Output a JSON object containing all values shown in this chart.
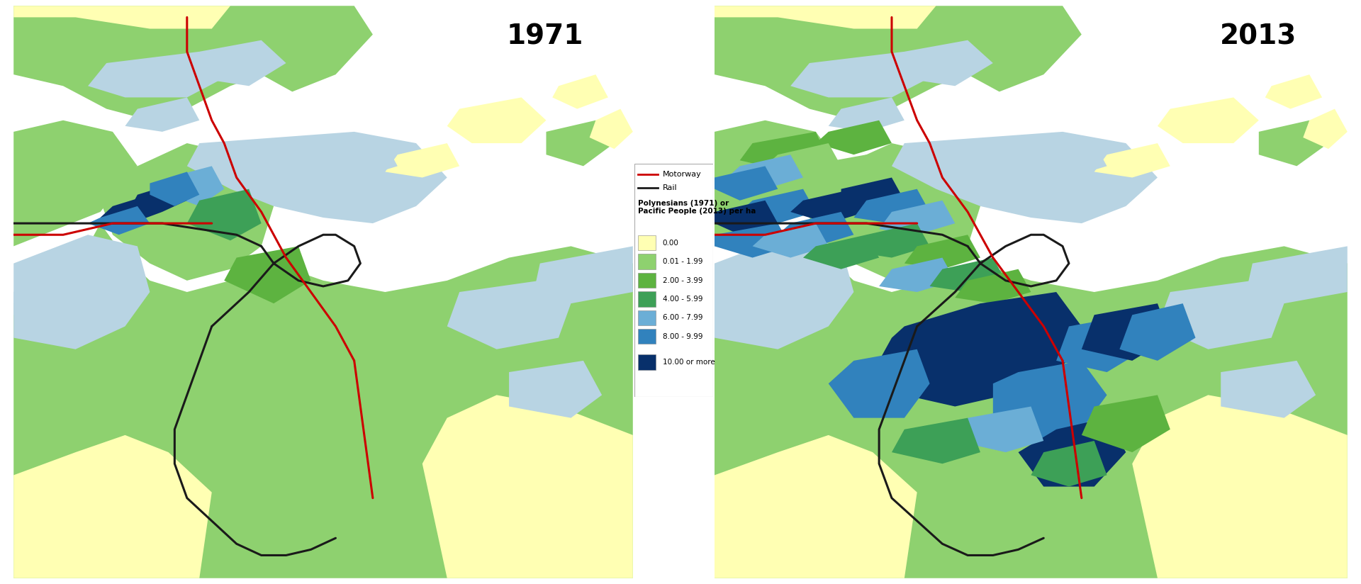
{
  "title_1971": "1971",
  "title_2013": "2013",
  "fig_bg": "#ffffff",
  "ocean": "#b8d4e3",
  "land_yellow": "#ffffb3",
  "land_lgreen": "#8ed16f",
  "land_dgreen": "#5db340",
  "c0": "#ffffb3",
  "c1": "#8ed16f",
  "c2": "#5db340",
  "c3": "#3da057",
  "c4": "#6baed6",
  "c5": "#3182bd",
  "c6": "#08306b",
  "motorway": "#cc0000",
  "rail": "#1a1a1a",
  "legend_bg": "#ffffff",
  "border": "#888888",
  "title_fontsize": 28,
  "legend_items": [
    {
      "label": "0.00",
      "color": "#ffffb3"
    },
    {
      "label": "0.01 - 1.99",
      "color": "#8ed16f"
    },
    {
      "label": "2.00 - 3.99",
      "color": "#5db340"
    },
    {
      "label": "4.00 - 5.99",
      "color": "#3da057"
    },
    {
      "label": "6.00 - 7.99",
      "color": "#6baed6"
    },
    {
      "label": "8.00 - 9.99",
      "color": "#3182bd"
    },
    {
      "label": "10.00 or more",
      "color": "#08306b"
    }
  ]
}
